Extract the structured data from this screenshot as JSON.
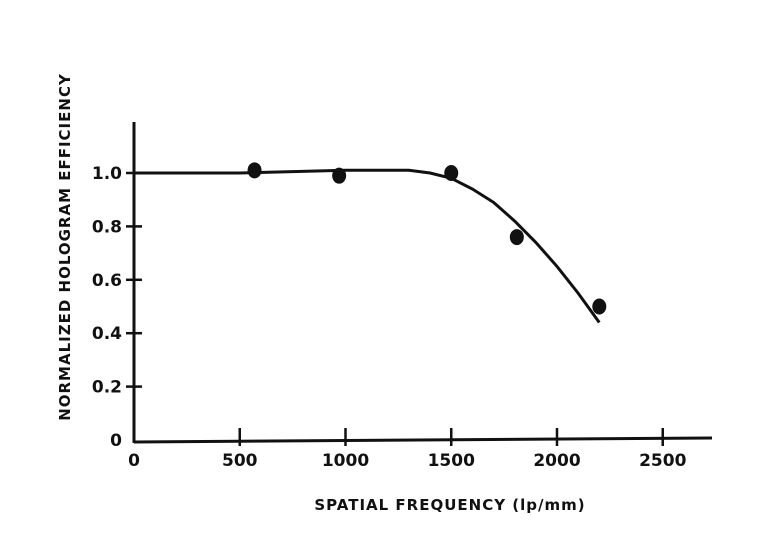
{
  "chart_data": {
    "type": "scatter",
    "title": "",
    "xlabel": "SPATIAL FREQUENCY (lp/mm)",
    "ylabel": "NORMALIZED HOLOGRAM EFFICIENCY",
    "xlim": [
      0,
      2750
    ],
    "ylim": [
      0,
      1.2
    ],
    "x_ticks": [
      0,
      500,
      1000,
      1500,
      2000,
      2500
    ],
    "x_tick_labels": [
      "0",
      "500",
      "1000",
      "1500",
      "2000",
      "2500"
    ],
    "y_ticks": [
      0,
      0.2,
      0.4,
      0.6,
      0.8,
      1.0
    ],
    "y_tick_labels": [
      "0",
      "0.2",
      "0.4",
      "0.6",
      "0.8",
      "1.0"
    ],
    "grid": false,
    "legend": "none",
    "points": {
      "x": [
        570,
        970,
        1500,
        1810,
        2200
      ],
      "y": [
        1.01,
        0.99,
        1.0,
        0.76,
        0.5
      ]
    },
    "fit_curve": {
      "x": [
        0,
        500,
        1000,
        1300,
        1400,
        1500,
        1600,
        1700,
        1800,
        1900,
        2000,
        2100,
        2200
      ],
      "y": [
        1.0,
        1.0,
        1.01,
        1.01,
        1.0,
        0.98,
        0.94,
        0.89,
        0.82,
        0.74,
        0.65,
        0.55,
        0.44
      ]
    }
  }
}
